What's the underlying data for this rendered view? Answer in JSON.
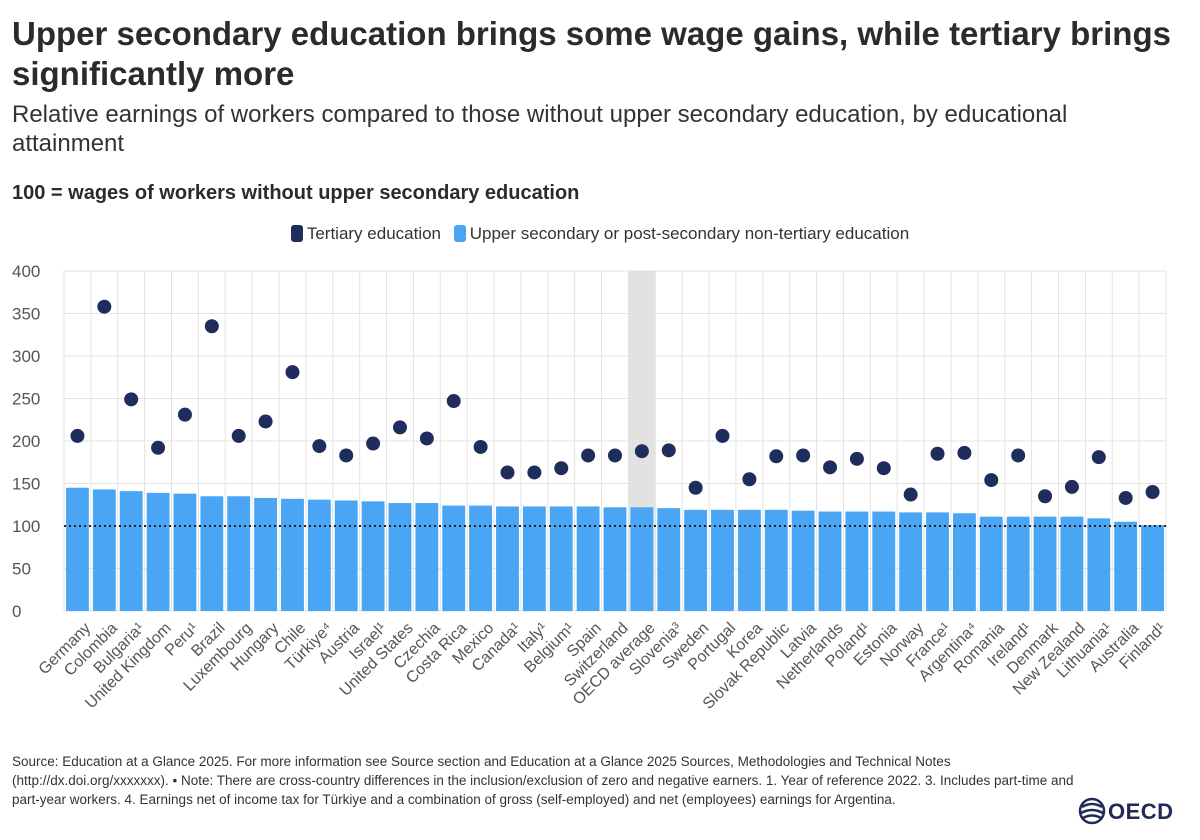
{
  "chart_data": {
    "type": "bar",
    "title": "Upper secondary education brings some wage gains, while tertiary brings significantly more",
    "subtitle": "Relative earnings of workers compared to those without upper secondary education, by educational attainment",
    "units_note": "100 = wages of workers without upper secondary education",
    "ylim": [
      0,
      400
    ],
    "yticks": [
      0,
      50,
      100,
      150,
      200,
      250,
      300,
      350,
      400
    ],
    "reference_line": 100,
    "highlight_category": "OECD average",
    "categories": [
      "Germany",
      "Colombia",
      "Bulgaria¹",
      "United Kingdom",
      "Peru¹",
      "Brazil",
      "Luxembourg",
      "Hungary",
      "Chile",
      "Türkiye⁴",
      "Austria",
      "Israel¹",
      "United States",
      "Czechia",
      "Costa Rica",
      "Mexico",
      "Canada¹",
      "Italy¹",
      "Belgium¹",
      "Spain",
      "Switzerland",
      "OECD average",
      "Slovenia³",
      "Sweden",
      "Portugal",
      "Korea",
      "Slovak Republic",
      "Latvia",
      "Netherlands",
      "Poland¹",
      "Estonia",
      "Norway",
      "France¹",
      "Argentina⁴",
      "Romania",
      "Ireland¹",
      "Denmark",
      "New Zealand",
      "Lithuania¹",
      "Australia",
      "Finland¹"
    ],
    "series": [
      {
        "name": "Upper secondary or post-secondary non-tertiary education",
        "type": "bar",
        "color": "#4ba5f5",
        "values": [
          145,
          143,
          141,
          139,
          138,
          135,
          135,
          133,
          132,
          131,
          130,
          129,
          127,
          127,
          124,
          124,
          123,
          123,
          123,
          123,
          122,
          122,
          121,
          119,
          119,
          119,
          119,
          118,
          117,
          117,
          117,
          116,
          116,
          115,
          111,
          111,
          111,
          111,
          109,
          105,
          101
        ]
      },
      {
        "name": "Tertiary education",
        "type": "dot",
        "color": "#1f2d5c",
        "values": [
          206,
          358,
          249,
          192,
          231,
          335,
          206,
          223,
          281,
          194,
          183,
          197,
          216,
          203,
          247,
          193,
          163,
          163,
          168,
          183,
          183,
          188,
          189,
          145,
          206,
          155,
          182,
          183,
          169,
          179,
          168,
          137,
          185,
          186,
          154,
          183,
          135,
          146,
          181,
          133,
          140
        ]
      }
    ]
  },
  "footer": {
    "source_note": "Source: Education at a Glance 2025. For more information see Source section and Education at a Glance 2025 Sources, Methodologies and Technical Notes (http://dx.doi.org/xxxxxxx). • Note: There are cross-country differences in the inclusion/exclusion of zero and negative earners. 1. Year of reference 2022. 3. Includes part-time and part-year workers. 4. Earnings net of income tax for Türkiye and a combination of gross (self-employed) and net (employees) earnings for Argentina."
  },
  "logo": {
    "text": "OECD"
  },
  "colors": {
    "grid": "#e3e3e3",
    "highlight": "#e2e2e2",
    "reference_line": "#222222",
    "axis_text": "#555555"
  }
}
